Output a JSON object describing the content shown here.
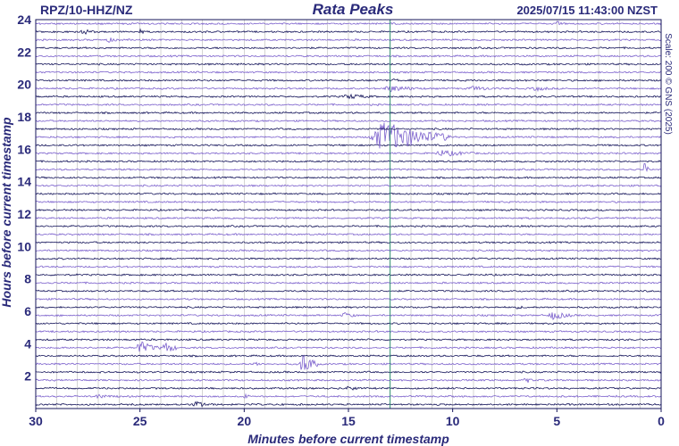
{
  "header": {
    "station": "RPZ/10-HHZ/NZ",
    "site": "Rata Peaks",
    "timestamp": "2025/07/15 11:43:00 NZST"
  },
  "credit": "Scale: 200 © GNS (2025)",
  "colors": {
    "text": "#2a2a7a",
    "trace_dark": "#14145a",
    "trace_light": "#7b60cc",
    "grid": "#9a9a9a",
    "marker": "#2f8f6f"
  },
  "chart_data": {
    "type": "line",
    "subtype": "helicorder",
    "xlabel": "Minutes before current timestamp",
    "ylabel": "Hours before current timestamp",
    "xlim": [
      30,
      0
    ],
    "ylim": [
      0,
      24
    ],
    "x_ticks": [
      "30",
      "25",
      "20",
      "15",
      "10",
      "5",
      "0"
    ],
    "y_ticks": [
      "2",
      "4",
      "6",
      "8",
      "10",
      "12",
      "14",
      "16",
      "18",
      "20",
      "22",
      "24"
    ],
    "grid": true,
    "minute_gridlines_every": 1,
    "current_time_marker_minutes": 13,
    "traces_per_hour": 2,
    "trace_count": 48,
    "trace_colors_alternate": [
      "dark",
      "light"
    ],
    "events": [
      {
        "hours_before": 0.25,
        "minutes_before": 22.3,
        "amplitude": 4,
        "duration_min": 1.2
      },
      {
        "hours_before": 0.75,
        "minutes_before": 27.0,
        "amplitude": 3,
        "duration_min": 1.0
      },
      {
        "hours_before": 0.75,
        "minutes_before": 20.0,
        "amplitude": 3,
        "duration_min": 0.6
      },
      {
        "hours_before": 1.25,
        "minutes_before": 15.0,
        "amplitude": 3,
        "duration_min": 1.0
      },
      {
        "hours_before": 1.75,
        "minutes_before": 6.5,
        "amplitude": 4,
        "duration_min": 0.6
      },
      {
        "hours_before": 2.75,
        "minutes_before": 17.2,
        "amplitude": 14,
        "duration_min": 0.9
      },
      {
        "hours_before": 2.75,
        "minutes_before": 19.5,
        "amplitude": 3,
        "duration_min": 0.8
      },
      {
        "hours_before": 3.75,
        "minutes_before": 25.0,
        "amplitude": 8,
        "duration_min": 1.2
      },
      {
        "hours_before": 3.75,
        "minutes_before": 23.8,
        "amplitude": 8,
        "duration_min": 0.8
      },
      {
        "hours_before": 5.75,
        "minutes_before": 15.2,
        "amplitude": 4,
        "duration_min": 0.9
      },
      {
        "hours_before": 5.75,
        "minutes_before": 5.2,
        "amplitude": 5,
        "duration_min": 1.5
      },
      {
        "hours_before": 6.25,
        "minutes_before": 7.0,
        "amplitude": 2,
        "duration_min": 1.5
      },
      {
        "hours_before": 16.75,
        "minutes_before": 13.3,
        "amplitude": 18,
        "duration_min": 4.0
      },
      {
        "hours_before": 15.75,
        "minutes_before": 10.5,
        "amplitude": 4,
        "duration_min": 2.5
      },
      {
        "hours_before": 14.75,
        "minutes_before": 0.8,
        "amplitude": 9,
        "duration_min": 0.3
      },
      {
        "hours_before": 19.75,
        "minutes_before": 13.0,
        "amplitude": 4,
        "duration_min": 2.5
      },
      {
        "hours_before": 19.75,
        "minutes_before": 9.0,
        "amplitude": 3,
        "duration_min": 2.0
      },
      {
        "hours_before": 19.75,
        "minutes_before": 6.0,
        "amplitude": 3,
        "duration_min": 1.5
      },
      {
        "hours_before": 19.25,
        "minutes_before": 15.0,
        "amplitude": 3,
        "duration_min": 2.5
      },
      {
        "hours_before": 23.25,
        "minutes_before": 27.8,
        "amplitude": 4,
        "duration_min": 1.0
      },
      {
        "hours_before": 23.25,
        "minutes_before": 25.0,
        "amplitude": 3,
        "duration_min": 0.5
      },
      {
        "hours_before": 22.75,
        "minutes_before": 26.5,
        "amplitude": 3,
        "duration_min": 1.0
      },
      {
        "hours_before": 23.75,
        "minutes_before": 5.0,
        "amplitude": 4,
        "duration_min": 0.4
      },
      {
        "hours_before": 20.25,
        "minutes_before": 12.8,
        "amplitude": 3,
        "duration_min": 0.5
      }
    ]
  }
}
